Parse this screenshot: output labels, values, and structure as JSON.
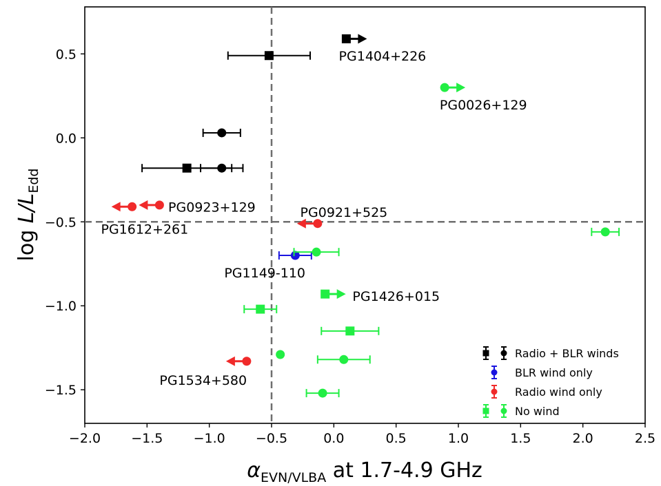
{
  "chart_data": {
    "type": "scatter",
    "title": "",
    "xlabel": {
      "symbol": "α",
      "sub": "EVN/VLBA",
      "rest": " at 1.7-4.9 GHz"
    },
    "ylabel": {
      "prefix": "log ",
      "main": "L/L",
      "sub": "Edd"
    },
    "xlim": [
      -2.0,
      2.5
    ],
    "ylim": [
      -1.7,
      0.78
    ],
    "xticks": [
      -2.0,
      -1.5,
      -1.0,
      -0.5,
      0.0,
      0.5,
      1.0,
      1.5,
      2.0,
      2.5
    ],
    "xtick_labels": [
      "−2.0",
      "−1.5",
      "−1.0",
      "−0.5",
      "0.0",
      "0.5",
      "1.0",
      "1.5",
      "2.0",
      "2.5"
    ],
    "yticks": [
      0.5,
      0.0,
      -0.5,
      -1.0,
      -1.5
    ],
    "ytick_labels": [
      "0.5",
      "0.0",
      "−0.5",
      "−1.0",
      "−1.5"
    ],
    "reference_lines": {
      "x": -0.5,
      "y": -0.5,
      "style": "dashed"
    },
    "grid": false,
    "colors": {
      "radio_blr": "#000000",
      "blr_only": "#1a14e0",
      "radio_only": "#f02a2a",
      "no_wind": "#22ee44"
    },
    "series": [
      {
        "name": "Radio + BLR winds",
        "color": "#000000",
        "points": [
          {
            "x": 0.1,
            "y": 0.59,
            "marker": "square",
            "limit": "lower"
          },
          {
            "x": -0.52,
            "y": 0.49,
            "marker": "square",
            "xerr": 0.33
          },
          {
            "x": -0.9,
            "y": 0.03,
            "marker": "circle",
            "xerr": 0.15
          },
          {
            "x": -1.18,
            "y": -0.18,
            "marker": "square",
            "xerr": 0.36
          },
          {
            "x": -0.9,
            "y": -0.18,
            "marker": "circle",
            "xerr": 0.17
          }
        ]
      },
      {
        "name": "BLR wind only",
        "color": "#1a14e0",
        "points": [
          {
            "x": -0.31,
            "y": -0.7,
            "marker": "circle",
            "xerr": 0.13
          }
        ]
      },
      {
        "name": "Radio wind only",
        "color": "#f02a2a",
        "points": [
          {
            "x": -1.4,
            "y": -0.4,
            "marker": "circle",
            "limit": "upper"
          },
          {
            "x": -1.62,
            "y": -0.41,
            "marker": "circle",
            "limit": "upper"
          },
          {
            "x": -0.13,
            "y": -0.51,
            "marker": "circle",
            "limit": "upper"
          },
          {
            "x": -0.7,
            "y": -1.33,
            "marker": "circle",
            "limit": "upper"
          }
        ]
      },
      {
        "name": "No wind",
        "color": "#22ee44",
        "points": [
          {
            "x": 0.89,
            "y": 0.3,
            "marker": "circle",
            "limit": "lower"
          },
          {
            "x": 2.18,
            "y": -0.56,
            "marker": "circle",
            "xerr": 0.11
          },
          {
            "x": -0.14,
            "y": -0.68,
            "marker": "circle",
            "xerr": 0.18
          },
          {
            "x": -0.07,
            "y": -0.93,
            "marker": "square",
            "limit": "lower"
          },
          {
            "x": -0.59,
            "y": -1.02,
            "marker": "square",
            "xerr": 0.13
          },
          {
            "x": 0.13,
            "y": -1.15,
            "marker": "square",
            "xerr": 0.23
          },
          {
            "x": -0.43,
            "y": -1.29,
            "marker": "circle"
          },
          {
            "x": 0.08,
            "y": -1.32,
            "marker": "circle",
            "xerr": 0.21
          },
          {
            "x": -0.09,
            "y": -1.52,
            "marker": "circle",
            "xerr": 0.13
          }
        ]
      }
    ],
    "annotations": [
      {
        "text": "PG1404+226",
        "x": 0.04,
        "y": 0.46,
        "anchor": "start"
      },
      {
        "text": "PG0026+129",
        "x": 0.85,
        "y": 0.17,
        "anchor": "start"
      },
      {
        "text": "PG0923+129",
        "x": -1.33,
        "y": -0.44,
        "anchor": "start"
      },
      {
        "text": "PG1612+261",
        "x": -1.87,
        "y": -0.57,
        "anchor": "start"
      },
      {
        "text": "PG0921+525",
        "x": -0.27,
        "y": -0.47,
        "anchor": "start"
      },
      {
        "text": "PG1149-110",
        "x": -0.88,
        "y": -0.83,
        "anchor": "start"
      },
      {
        "text": "PG1426+015",
        "x": 0.15,
        "y": -0.97,
        "anchor": "start"
      },
      {
        "text": "PG1534+580",
        "x": -1.4,
        "y": -1.47,
        "anchor": "start"
      }
    ],
    "legend": {
      "position": "lower-right",
      "entries": [
        {
          "label": "Radio + BLR winds",
          "markers": [
            "square",
            "circle"
          ],
          "color": "#000000"
        },
        {
          "label": "BLR wind only",
          "markers": [
            "circle"
          ],
          "color": "#1a14e0"
        },
        {
          "label": "Radio wind only",
          "markers": [
            "circle"
          ],
          "color": "#f02a2a"
        },
        {
          "label": "No wind",
          "markers": [
            "square",
            "circle"
          ],
          "color": "#22ee44"
        }
      ]
    }
  }
}
